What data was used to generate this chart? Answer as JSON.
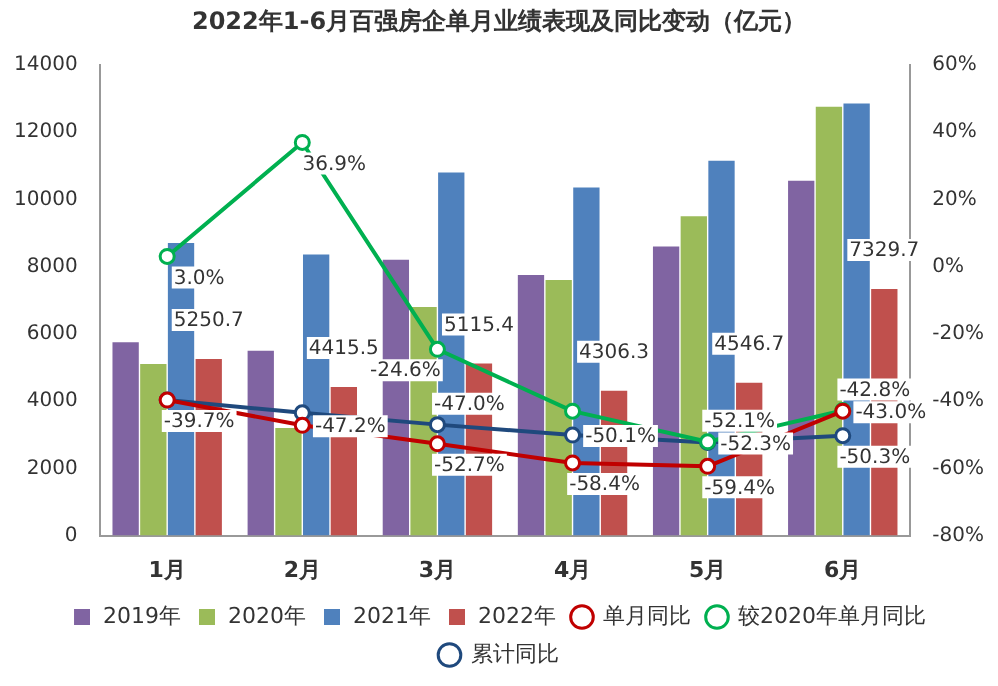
{
  "chart_data": {
    "type": "bar",
    "title": "2022年1-6月百强房企单月业绩表现及同比变动（亿元）",
    "categories": [
      "1月",
      "2月",
      "3月",
      "4月",
      "5月",
      "6月"
    ],
    "series": [
      {
        "name": "2019年",
        "color": "#8064a2",
        "values": [
          5750,
          5500,
          8200,
          7750,
          8600,
          10550
        ]
      },
      {
        "name": "2020年",
        "color": "#9bbb59",
        "values": [
          5100,
          3200,
          6800,
          7600,
          9500,
          12750
        ]
      },
      {
        "name": "2021年",
        "color": "#4f81bd",
        "values": [
          8700,
          8360,
          10800,
          10350,
          11150,
          12850
        ]
      },
      {
        "name": "2022年",
        "color": "#c0504d",
        "values": [
          5250.7,
          4415.5,
          5115.4,
          4306.3,
          4546.7,
          7329.7
        ],
        "value_labels": [
          "5250.7",
          "4415.5",
          "5115.4",
          "4306.3",
          "4546.7",
          "7329.7"
        ]
      },
      {
        "name": "单月同比",
        "type": "line",
        "axis": "y2",
        "color": "#c00000",
        "values": [
          -39.7,
          -47.2,
          -52.7,
          -58.4,
          -59.4,
          -43.0
        ],
        "value_labels": [
          "-39.7%",
          "-47.2%",
          "-52.7%",
          "-58.4%",
          "-59.4%",
          "-43.0%"
        ]
      },
      {
        "name": "较2020年单月同比",
        "type": "line",
        "axis": "y2",
        "color": "#00b050",
        "values": [
          3.0,
          36.9,
          -24.6,
          -43,
          -52.1,
          -42.8
        ],
        "value_labels": [
          "3.0%",
          "36.9%",
          "-24.6%",
          null,
          "-52.1%",
          "-42.8%"
        ]
      },
      {
        "name": "累计同比",
        "type": "line",
        "axis": "y2",
        "color": "#1f497d",
        "values": [
          -39.7,
          -43.5,
          -47.0,
          -50.1,
          -52.3,
          -50.3
        ],
        "value_labels": [
          null,
          null,
          "-47.0%",
          "-50.1%",
          "-52.3%",
          "-50.3%"
        ]
      }
    ],
    "ylim": [
      0,
      14000
    ],
    "yticks": [
      0,
      2000,
      4000,
      6000,
      8000,
      10000,
      12000,
      14000
    ],
    "y2lim": [
      -80,
      60
    ],
    "y2ticks": [
      {
        "value": -80,
        "label": "-80%"
      },
      {
        "value": -60,
        "label": "-60%"
      },
      {
        "value": -40,
        "label": "-40%"
      },
      {
        "value": -20,
        "label": "-20%"
      },
      {
        "value": 0,
        "label": "0%"
      },
      {
        "value": 20,
        "label": "20%"
      },
      {
        "value": 40,
        "label": "40%"
      },
      {
        "value": 60,
        "label": "60%"
      }
    ],
    "grid": false,
    "legend": "bottom",
    "marker": "circle",
    "line_style": "solid"
  }
}
